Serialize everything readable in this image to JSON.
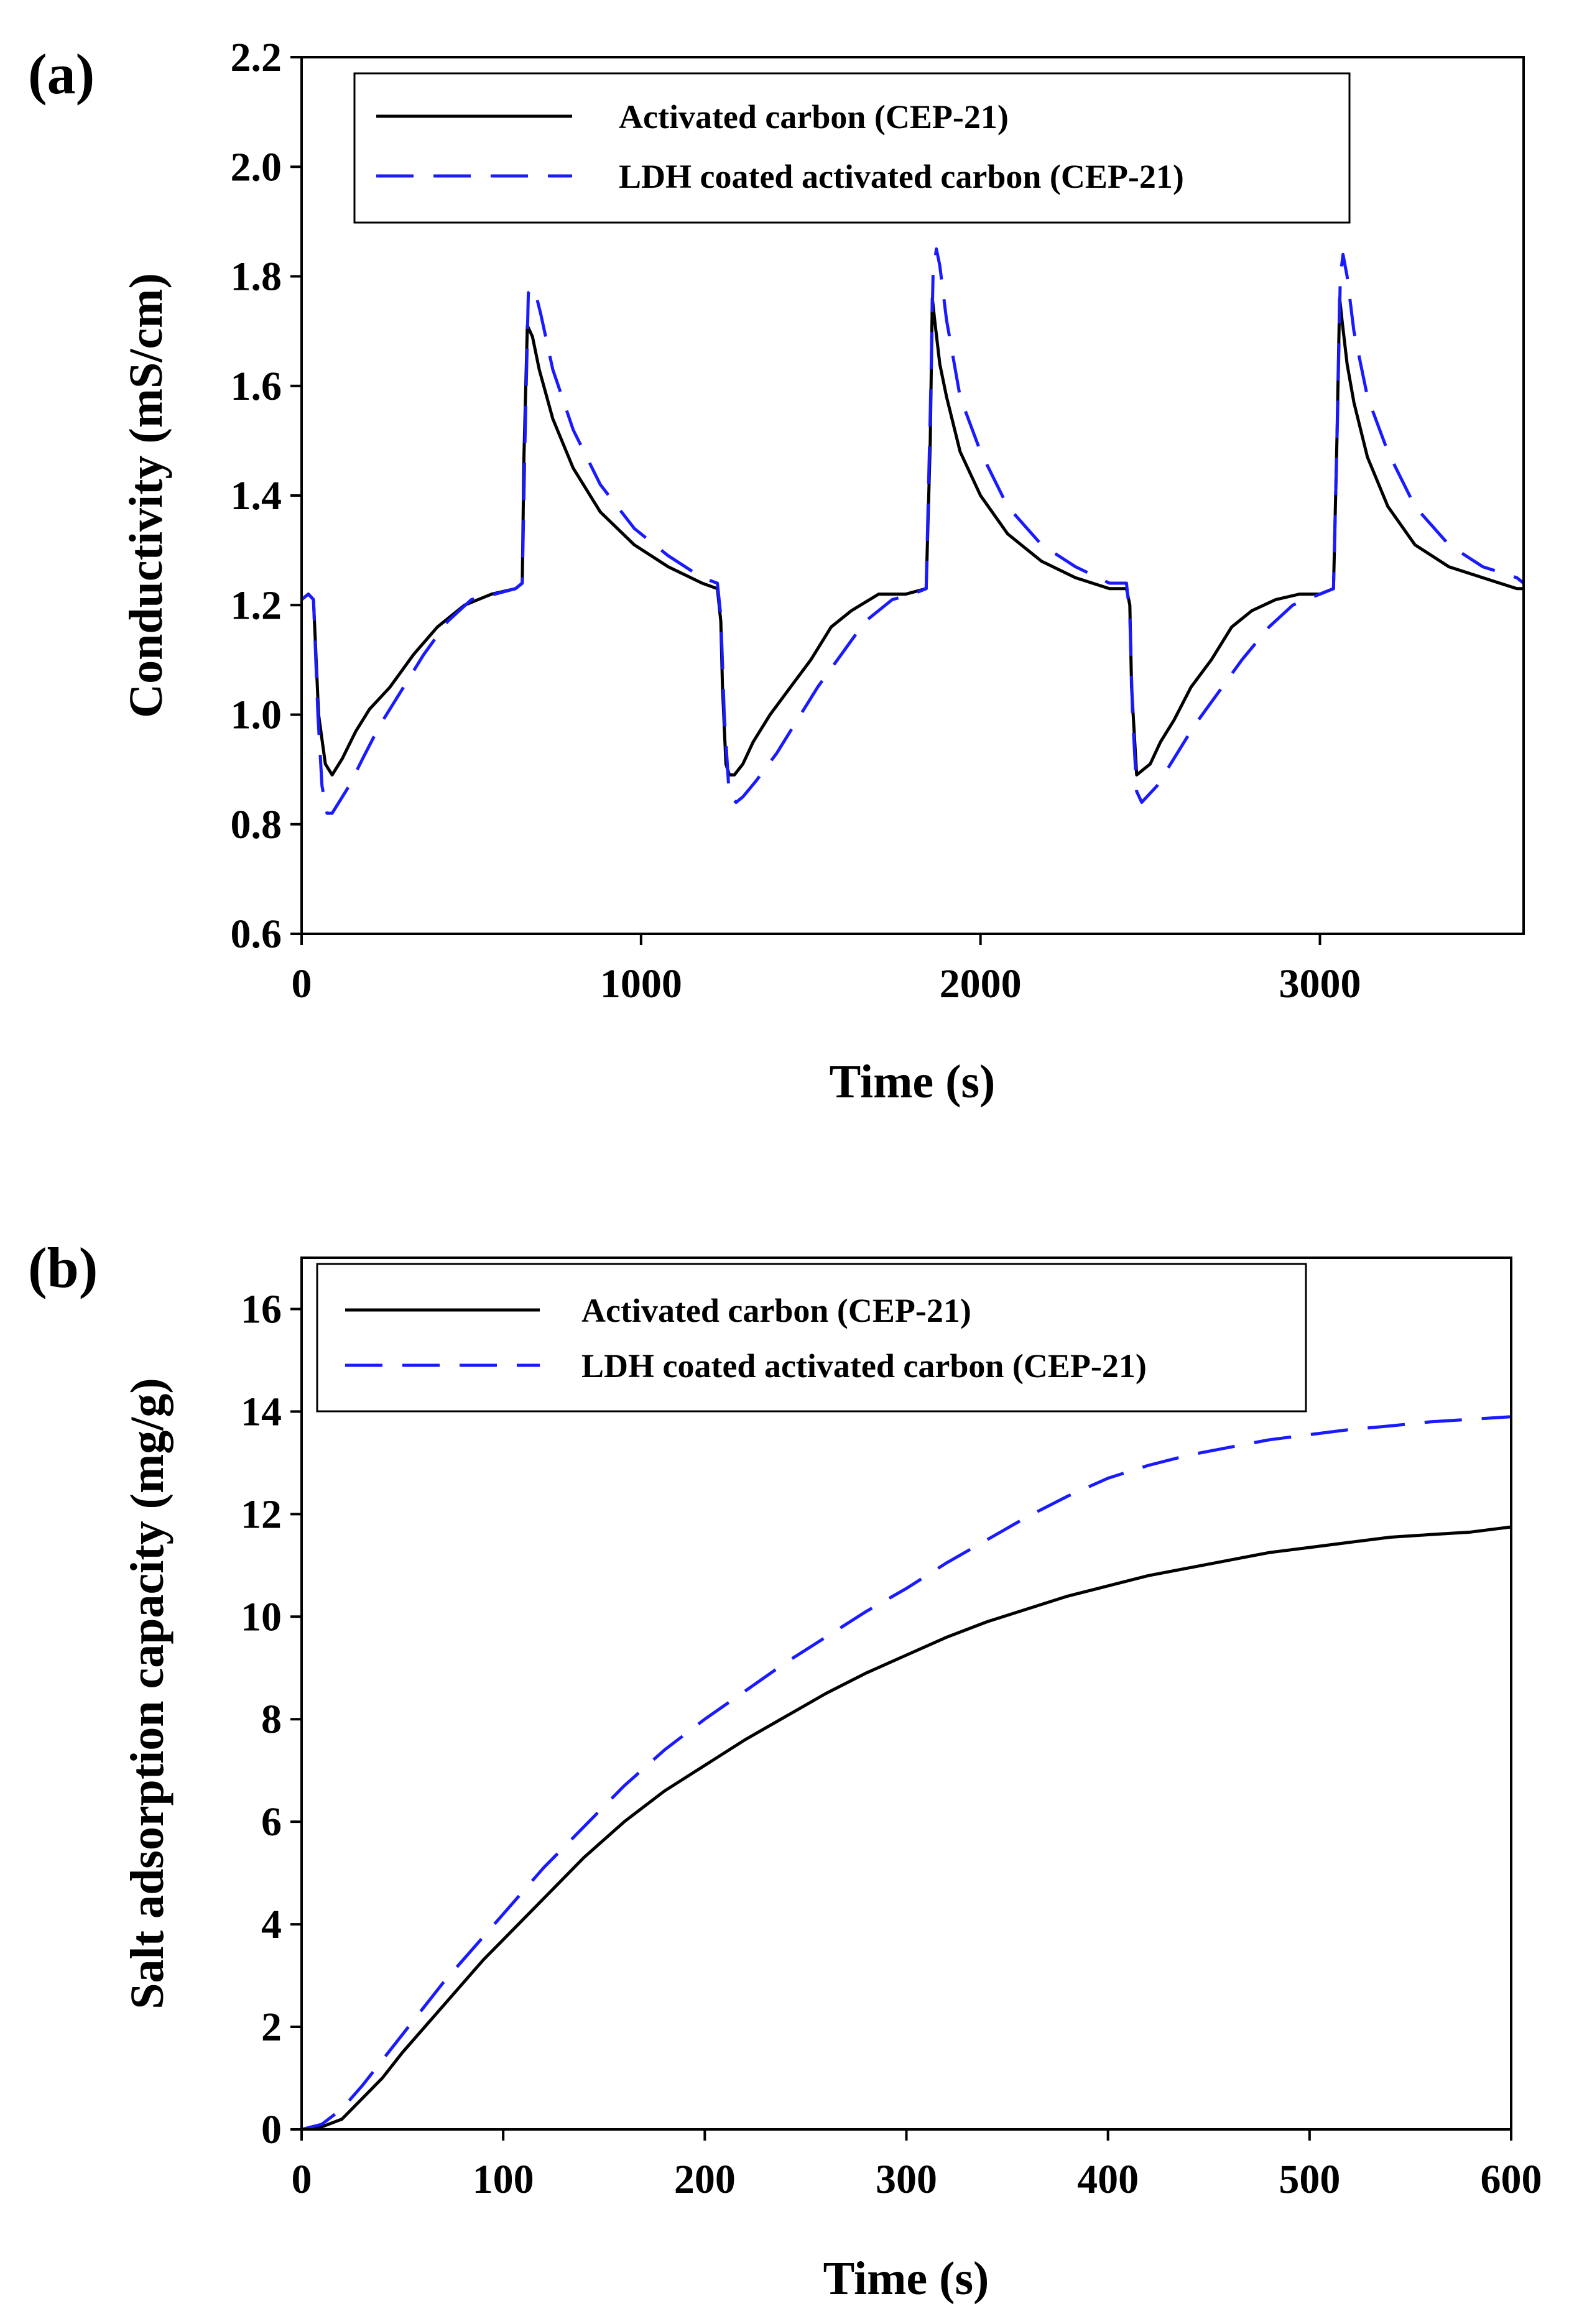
{
  "colors": {
    "series_solid": "#000000",
    "series_dashed": "#1a1aff",
    "axes": "#000000",
    "background": "#ffffff"
  },
  "chart_data": [
    {
      "type": "line",
      "panel": "(a)",
      "xlabel": "Time (s)",
      "ylabel": "Conductivity (mS/cm)",
      "xlim": [
        0,
        3600
      ],
      "ylim": [
        0.6,
        2.2
      ],
      "xticks": [
        0,
        1000,
        2000,
        3000
      ],
      "yticks": [
        0.6,
        0.8,
        1.0,
        1.2,
        1.4,
        1.6,
        1.8,
        2.0,
        2.2
      ],
      "xtick_labels": [
        "0",
        "1000",
        "2000",
        "3000"
      ],
      "ytick_labels": [
        "0.6",
        "0.8",
        "1.0",
        "1.2",
        "1.4",
        "1.6",
        "1.8",
        "2.0",
        "2.2"
      ],
      "grid": false,
      "legend_position": "top-left",
      "series": [
        {
          "name": "Activated carbon (CEP-21)",
          "style": "solid",
          "x": [
            0,
            20,
            35,
            50,
            70,
            90,
            120,
            160,
            200,
            260,
            330,
            400,
            480,
            560,
            630,
            650,
            655,
            665,
            680,
            700,
            740,
            800,
            880,
            980,
            1080,
            1180,
            1225,
            1235,
            1240,
            1250,
            1260,
            1275,
            1300,
            1330,
            1380,
            1440,
            1500,
            1560,
            1620,
            1700,
            1780,
            1840,
            1852,
            1858,
            1865,
            1880,
            1900,
            1940,
            2000,
            2080,
            2180,
            2280,
            2380,
            2430,
            2440,
            2445,
            2460,
            2480,
            2500,
            2530,
            2570,
            2620,
            2680,
            2740,
            2800,
            2870,
            2940,
            3000,
            3040,
            3050,
            3058,
            3065,
            3080,
            3100,
            3140,
            3200,
            3280,
            3380,
            3480,
            3580,
            3600
          ],
          "y": [
            1.21,
            1.22,
            1.21,
            1.0,
            0.91,
            0.89,
            0.92,
            0.97,
            1.01,
            1.05,
            1.11,
            1.16,
            1.2,
            1.22,
            1.23,
            1.24,
            1.47,
            1.71,
            1.69,
            1.63,
            1.54,
            1.45,
            1.37,
            1.31,
            1.27,
            1.24,
            1.23,
            1.17,
            1.05,
            0.91,
            0.89,
            0.89,
            0.91,
            0.95,
            1.0,
            1.05,
            1.1,
            1.16,
            1.19,
            1.22,
            1.22,
            1.23,
            1.5,
            1.76,
            1.72,
            1.64,
            1.58,
            1.48,
            1.4,
            1.33,
            1.28,
            1.25,
            1.23,
            1.23,
            1.2,
            1.05,
            0.89,
            0.9,
            0.91,
            0.95,
            0.99,
            1.05,
            1.1,
            1.16,
            1.19,
            1.21,
            1.22,
            1.22,
            1.23,
            1.5,
            1.76,
            1.72,
            1.64,
            1.57,
            1.47,
            1.38,
            1.31,
            1.27,
            1.25,
            1.23,
            1.23
          ]
        },
        {
          "name": "LDH coated activated carbon (CEP-21)",
          "style": "dashed",
          "x": [
            0,
            20,
            35,
            48,
            60,
            75,
            90,
            110,
            140,
            180,
            230,
            290,
            360,
            430,
            500,
            570,
            630,
            650,
            658,
            668,
            685,
            705,
            740,
            800,
            880,
            980,
            1080,
            1180,
            1225,
            1235,
            1245,
            1260,
            1280,
            1300,
            1340,
            1400,
            1460,
            1520,
            1590,
            1660,
            1740,
            1800,
            1840,
            1852,
            1860,
            1870,
            1880,
            1900,
            1940,
            2000,
            2080,
            2180,
            2280,
            2380,
            2430,
            2440,
            2448,
            2460,
            2475,
            2490,
            2520,
            2570,
            2630,
            2700,
            2770,
            2850,
            2920,
            3000,
            3040,
            3052,
            3060,
            3068,
            3080,
            3100,
            3140,
            3200,
            3280,
            3380,
            3480,
            3580,
            3600
          ],
          "y": [
            1.21,
            1.22,
            1.21,
            1.0,
            0.87,
            0.82,
            0.82,
            0.84,
            0.87,
            0.92,
            0.98,
            1.04,
            1.11,
            1.17,
            1.21,
            1.22,
            1.23,
            1.24,
            1.5,
            1.77,
            1.78,
            1.73,
            1.63,
            1.52,
            1.42,
            1.34,
            1.29,
            1.25,
            1.24,
            1.18,
            1.0,
            0.85,
            0.84,
            0.85,
            0.88,
            0.93,
            0.99,
            1.05,
            1.11,
            1.17,
            1.21,
            1.22,
            1.23,
            1.55,
            1.8,
            1.85,
            1.82,
            1.72,
            1.58,
            1.48,
            1.38,
            1.31,
            1.27,
            1.24,
            1.24,
            1.18,
            1.0,
            0.86,
            0.84,
            0.85,
            0.87,
            0.92,
            0.98,
            1.04,
            1.1,
            1.16,
            1.2,
            1.22,
            1.23,
            1.55,
            1.8,
            1.84,
            1.8,
            1.7,
            1.58,
            1.48,
            1.38,
            1.31,
            1.27,
            1.25,
            1.24
          ]
        }
      ]
    },
    {
      "type": "line",
      "panel": "(b)",
      "xlabel": "Time (s)",
      "ylabel": "Salt adsorption capacity (mg/g)",
      "xlim": [
        0,
        600
      ],
      "ylim": [
        0,
        17
      ],
      "xticks": [
        0,
        100,
        200,
        300,
        400,
        500,
        600
      ],
      "yticks": [
        0,
        2,
        4,
        6,
        8,
        10,
        12,
        14,
        16
      ],
      "xtick_labels": [
        "0",
        "100",
        "200",
        "300",
        "400",
        "500",
        "600"
      ],
      "ytick_labels": [
        "0",
        "2",
        "4",
        "6",
        "8",
        "10",
        "12",
        "14",
        "16"
      ],
      "grid": false,
      "legend_position": "top-left",
      "series": [
        {
          "name": "Activated carbon (CEP-21)",
          "style": "solid",
          "x": [
            0,
            10,
            20,
            30,
            40,
            50,
            60,
            70,
            80,
            90,
            100,
            120,
            140,
            160,
            180,
            200,
            220,
            240,
            260,
            280,
            300,
            320,
            340,
            360,
            380,
            400,
            420,
            440,
            460,
            480,
            500,
            520,
            540,
            560,
            580,
            600
          ],
          "y": [
            0,
            0.05,
            0.2,
            0.6,
            1.0,
            1.5,
            1.95,
            2.4,
            2.85,
            3.3,
            3.7,
            4.5,
            5.3,
            6.0,
            6.6,
            7.1,
            7.6,
            8.05,
            8.5,
            8.9,
            9.25,
            9.6,
            9.9,
            10.15,
            10.4,
            10.6,
            10.8,
            10.95,
            11.1,
            11.25,
            11.35,
            11.45,
            11.55,
            11.6,
            11.65,
            11.75
          ]
        },
        {
          "name": "LDH coated activated carbon (CEP-21)",
          "style": "dashed",
          "x": [
            0,
            10,
            20,
            30,
            40,
            50,
            60,
            70,
            80,
            90,
            100,
            120,
            140,
            160,
            180,
            200,
            220,
            240,
            260,
            280,
            300,
            320,
            340,
            360,
            380,
            400,
            420,
            440,
            460,
            480,
            500,
            520,
            540,
            560,
            580,
            600
          ],
          "y": [
            0,
            0.1,
            0.4,
            0.85,
            1.35,
            1.85,
            2.35,
            2.85,
            3.3,
            3.75,
            4.2,
            5.1,
            5.9,
            6.7,
            7.4,
            8.0,
            8.55,
            9.1,
            9.6,
            10.1,
            10.55,
            11.05,
            11.5,
            11.95,
            12.35,
            12.7,
            12.95,
            13.15,
            13.3,
            13.45,
            13.55,
            13.65,
            13.72,
            13.8,
            13.85,
            13.9
          ]
        }
      ]
    }
  ]
}
